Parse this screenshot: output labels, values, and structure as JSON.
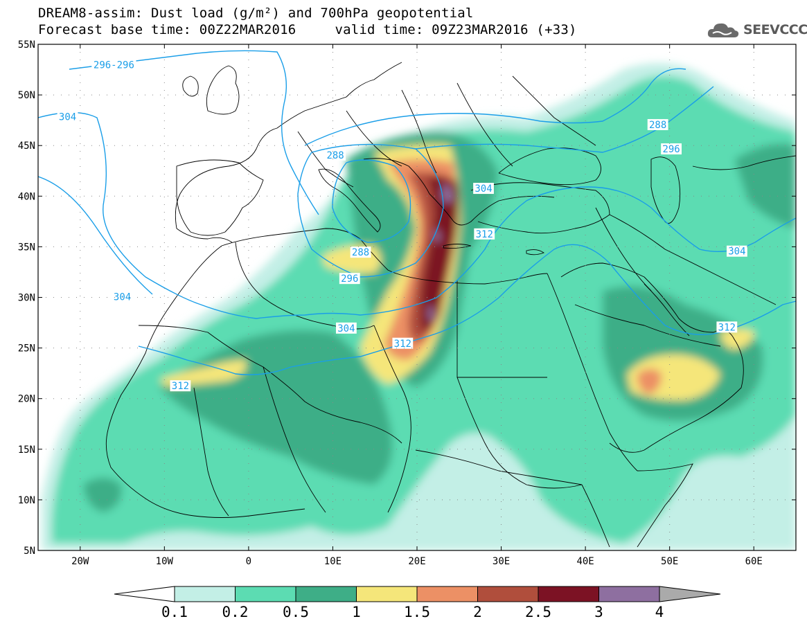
{
  "header": {
    "title_line1": "DREAM8-assim: Dust load (g/m²) and 700hPa geopotential",
    "base_time": "Forecast base time: 00Z22MAR2016",
    "valid_time": "valid time: 09Z23MAR2016 (+33)",
    "logo_text": "SEEVCCC"
  },
  "map": {
    "lat_labels": [
      "55N",
      "50N",
      "45N",
      "40N",
      "35N",
      "30N",
      "25N",
      "20N",
      "15N",
      "10N",
      "5N"
    ],
    "lat_values": [
      55,
      50,
      45,
      40,
      35,
      30,
      25,
      20,
      15,
      10,
      5
    ],
    "lon_labels": [
      "20W",
      "10W",
      "0",
      "10E",
      "20E",
      "30E",
      "40E",
      "50E",
      "60E"
    ],
    "lon_values": [
      -20,
      -10,
      0,
      10,
      20,
      30,
      40,
      50,
      60
    ],
    "extent": {
      "lon_min": -25,
      "lon_max": 65,
      "lat_min": 5,
      "lat_max": 55
    },
    "contour_labels": [
      {
        "text": "296-296",
        "lon": -16,
        "lat": 52.9
      },
      {
        "text": "304",
        "lon": -21.5,
        "lat": 47.8
      },
      {
        "text": "288",
        "lon": 10.3,
        "lat": 44.0
      },
      {
        "text": "288",
        "lon": 48.6,
        "lat": 47.0
      },
      {
        "text": "296",
        "lon": 50.2,
        "lat": 44.6
      },
      {
        "text": "304",
        "lon": 27.9,
        "lat": 40.7
      },
      {
        "text": "288",
        "lon": 13.3,
        "lat": 34.4
      },
      {
        "text": "296",
        "lon": 12.0,
        "lat": 31.8
      },
      {
        "text": "312",
        "lon": 28.0,
        "lat": 36.2
      },
      {
        "text": "304",
        "lon": 58.0,
        "lat": 34.5
      },
      {
        "text": "304",
        "lon": -15.0,
        "lat": 30.0
      },
      {
        "text": "304",
        "lon": 11.6,
        "lat": 26.9
      },
      {
        "text": "312",
        "lon": 18.3,
        "lat": 25.4
      },
      {
        "text": "312",
        "lon": 56.8,
        "lat": 27.0
      },
      {
        "text": "312",
        "lon": -8.1,
        "lat": 21.2
      }
    ]
  },
  "colorbar": {
    "labels": [
      "0.1",
      "0.2",
      "0.5",
      "1",
      "1.5",
      "2",
      "2.5",
      "3",
      "4"
    ],
    "colors": [
      "#c3efe6",
      "#5cdcb2",
      "#3eae87",
      "#f5e67a",
      "#ec9065",
      "#b04e3c",
      "#7c1224",
      "#8e6fa0"
    ],
    "under_color": "#ffffff",
    "over_color": "#aaaaaa"
  },
  "styles": {
    "land_color": "#ffffff",
    "contour_color": "#1a9ee8",
    "border_color": "#000000"
  }
}
